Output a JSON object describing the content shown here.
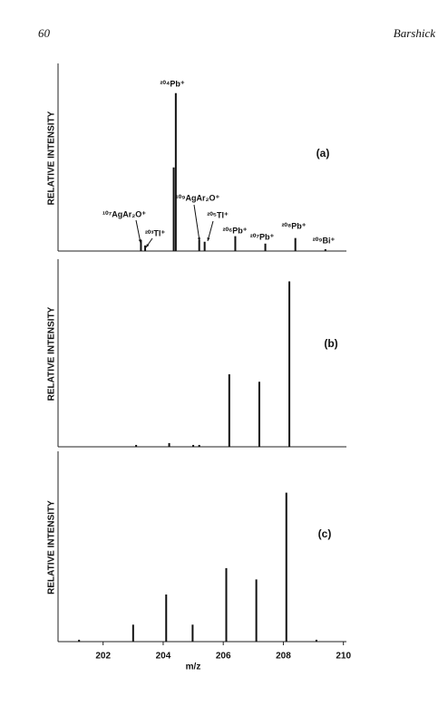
{
  "header": {
    "page": "60",
    "author": "Barshick"
  },
  "chart_data": [
    {
      "type": "stem",
      "label": "(a)",
      "ylabel": "RELATIVE INTENSITY",
      "x": [
        203.26,
        203.4,
        204.35,
        204.42,
        205.2,
        205.38,
        206.4,
        207.4,
        208.4,
        209.4
      ],
      "values": [
        6,
        3,
        45,
        85,
        6,
        5,
        8,
        4,
        7,
        1
      ],
      "xlim": [
        200.5,
        210.1
      ],
      "ylim": [
        0,
        100
      ],
      "annotations": [
        "²⁰⁴Pb⁺",
        "¹⁰⁷AgAr₂O⁺",
        "²⁰³Tl⁺",
        "¹⁰⁹AgAr₂O⁺",
        "²⁰⁵Tl⁺",
        "²⁰⁶Pb⁺",
        "²⁰⁷Pb⁺",
        "²⁰⁸Pb⁺",
        "²⁰⁹Bi⁺"
      ]
    },
    {
      "type": "stem",
      "label": "(b)",
      "ylabel": "RELATIVE INTENSITY",
      "x": [
        203.1,
        204.2,
        205.0,
        205.2,
        206.2,
        207.2,
        208.2
      ],
      "values": [
        1,
        2,
        1,
        1,
        39,
        35,
        89
      ],
      "xlim": [
        200.5,
        210.1
      ],
      "ylim": [
        0,
        100
      ]
    },
    {
      "type": "stem",
      "label": "(c)",
      "ylabel": "RELATIVE INTENSITY",
      "x": [
        201.2,
        203.0,
        204.1,
        204.98,
        206.1,
        207.1,
        208.1,
        209.1
      ],
      "values": [
        1,
        9,
        25,
        9,
        39,
        33,
        79,
        1
      ],
      "xlim": [
        200.5,
        210.1
      ],
      "ylim": [
        0,
        100
      ],
      "xticks": [
        202,
        204,
        206,
        208,
        210
      ],
      "xlabel": "m/z"
    }
  ]
}
